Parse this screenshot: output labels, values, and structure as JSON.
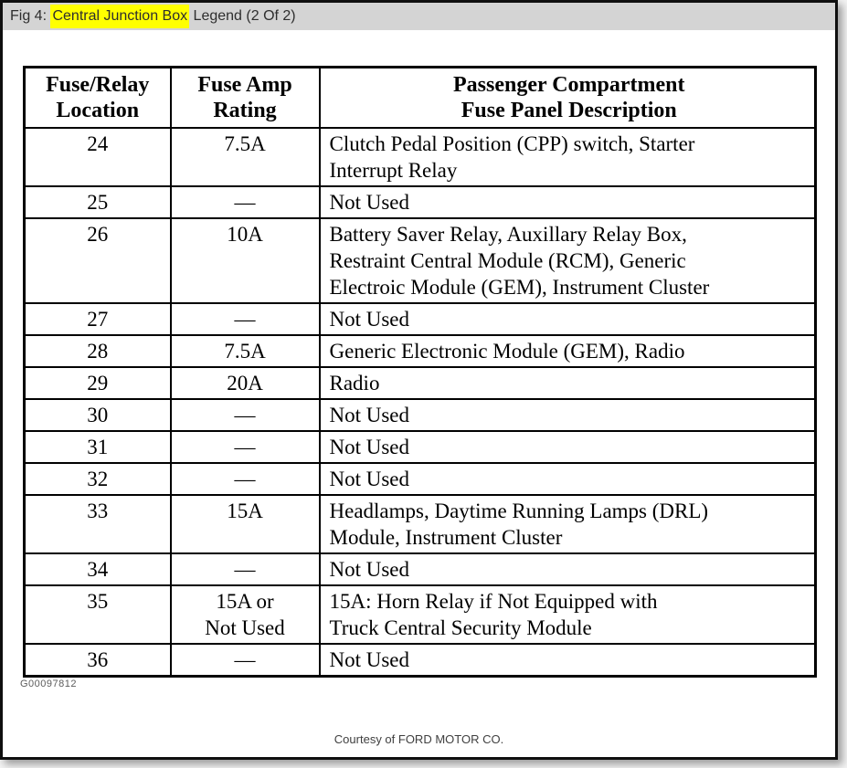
{
  "caption": {
    "prefix": "Fig 4: ",
    "highlight": "Central Junction Box",
    "suffix": " Legend (2 Of 2)"
  },
  "table": {
    "headers": [
      "Fuse/Relay\nLocation",
      "Fuse Amp\nRating",
      "Passenger Compartment\nFuse Panel Description"
    ],
    "rows": [
      {
        "location": "24",
        "rating": "7.5A",
        "description": "Clutch Pedal Position (CPP) switch, Starter\nInterrupt Relay"
      },
      {
        "location": "25",
        "rating": "—",
        "description": "Not Used"
      },
      {
        "location": "26",
        "rating": "10A",
        "description": "Battery Saver Relay, Auxillary Relay Box,\nRestraint Central Module (RCM), Generic\nElectroic Module (GEM), Instrument Cluster"
      },
      {
        "location": "27",
        "rating": "—",
        "description": "Not Used"
      },
      {
        "location": "28",
        "rating": "7.5A",
        "description": "Generic Electronic Module (GEM), Radio"
      },
      {
        "location": "29",
        "rating": "20A",
        "description": "Radio"
      },
      {
        "location": "30",
        "rating": "—",
        "description": "Not Used"
      },
      {
        "location": "31",
        "rating": "—",
        "description": "Not Used"
      },
      {
        "location": "32",
        "rating": "—",
        "description": "Not Used"
      },
      {
        "location": "33",
        "rating": "15A",
        "description": "Headlamps, Daytime Running Lamps (DRL)\nModule, Instrument Cluster"
      },
      {
        "location": "34",
        "rating": "—",
        "description": "Not Used"
      },
      {
        "location": "35",
        "rating": "15A or\nNot Used",
        "description": "15A: Horn Relay if Not Equipped with\nTruck Central Security Module"
      },
      {
        "location": "36",
        "rating": "—",
        "description": "Not Used"
      }
    ]
  },
  "footer": {
    "reference_code": "G00097812",
    "courtesy": "Courtesy of FORD MOTOR CO."
  },
  "colors": {
    "caption_bar_bg": "#d4d4d4",
    "caption_highlight_bg": "#ffff00",
    "table_border": "#000000",
    "page_border": "#0f0f0f",
    "page_bg": "#ffffff"
  }
}
